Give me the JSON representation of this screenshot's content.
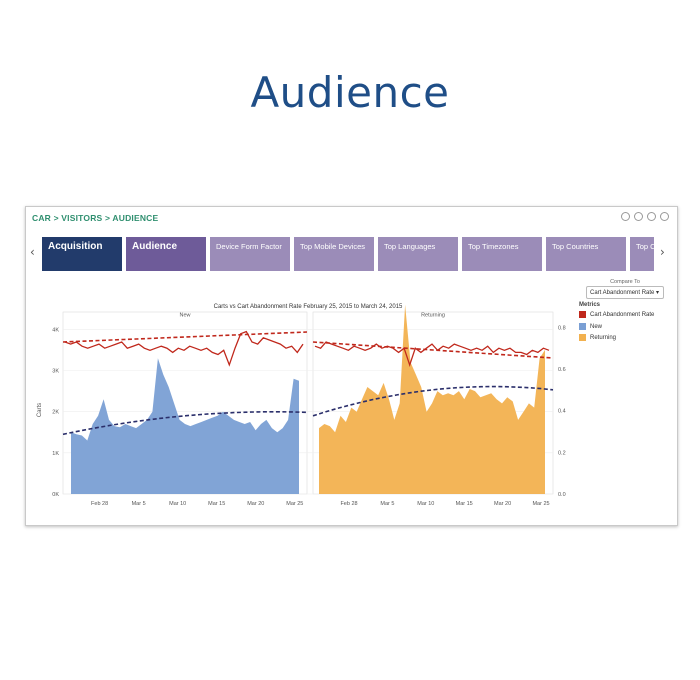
{
  "slide": {
    "title": "Audience"
  },
  "dashboard": {
    "breadcrumb": "CAR > VISITORS > AUDIENCE",
    "tabs": [
      "Acquisition",
      "Audience",
      "Device Form Factor",
      "Top Mobile Devices",
      "Top Languages",
      "Top Timezones",
      "Top Countries",
      "Top Co"
    ],
    "compare_label": "Compare To",
    "compare_value": "Cart Abandonment Rate",
    "legend_title": "Metrics",
    "legend": [
      {
        "label": "Cart Abandonment Rate",
        "color": "#c0281c"
      },
      {
        "label": "New",
        "color": "#7a9fd4"
      },
      {
        "label": "Returning",
        "color": "#f2b14f"
      }
    ]
  },
  "chart_data": {
    "type": "area",
    "title": "Carts vs Cart Abandonment Rate February 25, 2015 to March 24, 2015",
    "panels": [
      "New",
      "Returning"
    ],
    "ylabel": "Carts",
    "ylim": [
      0,
      4300
    ],
    "yticks": [
      "0K",
      "1K",
      "2K",
      "3K",
      "4K"
    ],
    "y2lim": [
      0,
      0.85
    ],
    "y2ticks": [
      "0.0",
      "0.2",
      "0.4",
      "0.6",
      "0.8"
    ],
    "xticks": [
      "Feb 28",
      "Mar 5",
      "Mar 10",
      "Mar 15",
      "Mar 20",
      "Mar 25"
    ],
    "series": [
      {
        "name": "New",
        "panel": 0,
        "color": "#7a9fd4",
        "values": [
          1500,
          1450,
          1420,
          1300,
          1700,
          1900,
          2300,
          1800,
          1650,
          1620,
          1700,
          1650,
          1600,
          1700,
          1800,
          2000,
          3300,
          2900,
          2600,
          2200,
          1800,
          1700,
          1650,
          1700,
          1750,
          1800,
          1850,
          1900,
          2000,
          1900,
          1800,
          1750,
          1700,
          1750,
          1550,
          1700,
          1800,
          1600,
          1500,
          1600,
          1800,
          2800,
          2750
        ]
      },
      {
        "name": "Returning",
        "panel": 1,
        "color": "#f2b14f",
        "values": [
          1600,
          1700,
          1650,
          1500,
          1900,
          1750,
          2100,
          2000,
          2300,
          2600,
          2500,
          2400,
          2700,
          2300,
          1800,
          2200,
          4600,
          3200,
          2900,
          2600,
          2000,
          2200,
          2500,
          2400,
          2450,
          2400,
          2500,
          2300,
          2550,
          2500,
          2350,
          2400,
          2450,
          2300,
          2200,
          2350,
          2250,
          1800,
          2000,
          2200,
          2100,
          3300,
          3500
        ]
      },
      {
        "name": "Cart Abandonment Rate",
        "panel": "both",
        "color": "#c0281c",
        "values": [
          0.73,
          0.72,
          0.73,
          0.71,
          0.7,
          0.71,
          0.72,
          0.7,
          0.71,
          0.72,
          0.73,
          0.7,
          0.71,
          0.72,
          0.7,
          0.69,
          0.7,
          0.71,
          0.7,
          0.68,
          0.7,
          0.69,
          0.71,
          0.7,
          0.69,
          0.7,
          0.68,
          0.67,
          0.69,
          0.62,
          0.7,
          0.77,
          0.78,
          0.73,
          0.72,
          0.75,
          0.74,
          0.73,
          0.72,
          0.7,
          0.71,
          0.68,
          0.72,
          0.71,
          0.7,
          0.73,
          0.72,
          0.71,
          0.7,
          0.69,
          0.71,
          0.7,
          0.69,
          0.7,
          0.72,
          0.7,
          0.71,
          0.7,
          0.68,
          0.7,
          0.62,
          0.7,
          0.68,
          0.7,
          0.72,
          0.69,
          0.71,
          0.7,
          0.72,
          0.71,
          0.7,
          0.69,
          0.7,
          0.69,
          0.71,
          0.68,
          0.7,
          0.69,
          0.7,
          0.68,
          0.68,
          0.67,
          0.69,
          0.68,
          0.7,
          0.69
        ]
      }
    ],
    "trendlines": [
      {
        "of": "Cart Abandonment Rate",
        "style": "dashed",
        "color": "#c0281c"
      },
      {
        "of": "Carts",
        "style": "dashed",
        "color": "#2b2f6b"
      }
    ],
    "grid": true,
    "legend_position": "right"
  }
}
